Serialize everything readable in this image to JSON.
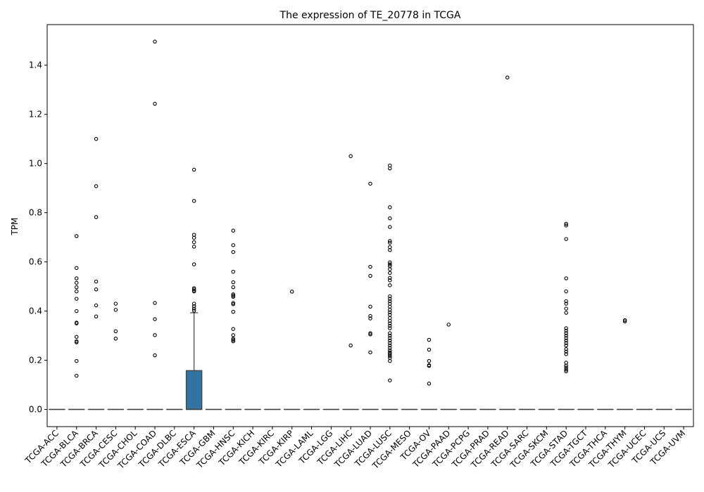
{
  "chart_data": {
    "type": "box",
    "title": "The expression of TE_20778 in TCGA",
    "xlabel": "",
    "ylabel": "TPM",
    "ylim": [
      -0.07,
      1.565
    ],
    "yticks": [
      0.0,
      0.2,
      0.4,
      0.6,
      0.8,
      1.0,
      1.2,
      1.4
    ],
    "ytick_labels": [
      "0.0",
      "0.2",
      "0.4",
      "0.6",
      "0.8",
      "1.0",
      "1.2",
      "1.4"
    ],
    "grid": false,
    "legend": "none",
    "box_color": "#3274a1",
    "categories": [
      "TCGA-ACC",
      "TCGA-BLCA",
      "TCGA-BRCA",
      "TCGA-CESC",
      "TCGA-CHOL",
      "TCGA-COAD",
      "TCGA-DLBC",
      "TCGA-ESCA",
      "TCGA-GBM",
      "TCGA-HNSC",
      "TCGA-KICH",
      "TCGA-KIRC",
      "TCGA-KIRP",
      "TCGA-LAML",
      "TCGA-LGG",
      "TCGA-LIHC",
      "TCGA-LUAD",
      "TCGA-LUSC",
      "TCGA-MESO",
      "TCGA-OV",
      "TCGA-PAAD",
      "TCGA-PCPG",
      "TCGA-PRAD",
      "TCGA-READ",
      "TCGA-SARC",
      "TCGA-SKCM",
      "TCGA-STAD",
      "TCGA-TGCT",
      "TCGA-THCA",
      "TCGA-THYM",
      "TCGA-UCEC",
      "TCGA-UCS",
      "TCGA-UVM"
    ],
    "boxes": [
      {
        "q1": 0,
        "median": 0,
        "q3": 0,
        "whisker_low": 0,
        "whisker_high": 0
      },
      {
        "q1": 0,
        "median": 0,
        "q3": 0,
        "whisker_low": 0,
        "whisker_high": 0
      },
      {
        "q1": 0,
        "median": 0,
        "q3": 0,
        "whisker_low": 0,
        "whisker_high": 0
      },
      {
        "q1": 0,
        "median": 0,
        "q3": 0,
        "whisker_low": 0,
        "whisker_high": 0
      },
      {
        "q1": 0,
        "median": 0,
        "q3": 0,
        "whisker_low": 0,
        "whisker_high": 0
      },
      {
        "q1": 0,
        "median": 0,
        "q3": 0,
        "whisker_low": 0,
        "whisker_high": 0
      },
      {
        "q1": 0,
        "median": 0,
        "q3": 0,
        "whisker_low": 0,
        "whisker_high": 0
      },
      {
        "q1": 0,
        "median": 0,
        "q3": 0.158,
        "whisker_low": 0,
        "whisker_high": 0.393
      },
      {
        "q1": 0,
        "median": 0,
        "q3": 0,
        "whisker_low": 0,
        "whisker_high": 0
      },
      {
        "q1": 0,
        "median": 0,
        "q3": 0,
        "whisker_low": 0,
        "whisker_high": 0
      },
      {
        "q1": 0,
        "median": 0,
        "q3": 0,
        "whisker_low": 0,
        "whisker_high": 0
      },
      {
        "q1": 0,
        "median": 0,
        "q3": 0,
        "whisker_low": 0,
        "whisker_high": 0
      },
      {
        "q1": 0,
        "median": 0,
        "q3": 0,
        "whisker_low": 0,
        "whisker_high": 0
      },
      {
        "q1": 0,
        "median": 0,
        "q3": 0,
        "whisker_low": 0,
        "whisker_high": 0
      },
      {
        "q1": 0,
        "median": 0,
        "q3": 0,
        "whisker_low": 0,
        "whisker_high": 0
      },
      {
        "q1": 0,
        "median": 0,
        "q3": 0,
        "whisker_low": 0,
        "whisker_high": 0
      },
      {
        "q1": 0,
        "median": 0,
        "q3": 0,
        "whisker_low": 0,
        "whisker_high": 0
      },
      {
        "q1": 0,
        "median": 0,
        "q3": 0,
        "whisker_low": 0,
        "whisker_high": 0
      },
      {
        "q1": 0,
        "median": 0,
        "q3": 0,
        "whisker_low": 0,
        "whisker_high": 0
      },
      {
        "q1": 0,
        "median": 0,
        "q3": 0,
        "whisker_low": 0,
        "whisker_high": 0
      },
      {
        "q1": 0,
        "median": 0,
        "q3": 0,
        "whisker_low": 0,
        "whisker_high": 0
      },
      {
        "q1": 0,
        "median": 0,
        "q3": 0,
        "whisker_low": 0,
        "whisker_high": 0
      },
      {
        "q1": 0,
        "median": 0,
        "q3": 0,
        "whisker_low": 0,
        "whisker_high": 0
      },
      {
        "q1": 0,
        "median": 0,
        "q3": 0,
        "whisker_low": 0,
        "whisker_high": 0
      },
      {
        "q1": 0,
        "median": 0,
        "q3": 0,
        "whisker_low": 0,
        "whisker_high": 0
      },
      {
        "q1": 0,
        "median": 0,
        "q3": 0,
        "whisker_low": 0,
        "whisker_high": 0
      },
      {
        "q1": 0,
        "median": 0,
        "q3": 0,
        "whisker_low": 0,
        "whisker_high": 0
      },
      {
        "q1": 0,
        "median": 0,
        "q3": 0,
        "whisker_low": 0,
        "whisker_high": 0
      },
      {
        "q1": 0,
        "median": 0,
        "q3": 0,
        "whisker_low": 0,
        "whisker_high": 0
      },
      {
        "q1": 0,
        "median": 0,
        "q3": 0,
        "whisker_low": 0,
        "whisker_high": 0
      },
      {
        "q1": 0,
        "median": 0,
        "q3": 0,
        "whisker_low": 0,
        "whisker_high": 0
      },
      {
        "q1": 0,
        "median": 0,
        "q3": 0,
        "whisker_low": 0,
        "whisker_high": 0
      },
      {
        "q1": 0,
        "median": 0,
        "q3": 0,
        "whisker_low": 0,
        "whisker_high": 0
      }
    ],
    "outliers": [
      [],
      [
        0.705,
        0.575,
        0.533,
        0.515,
        0.497,
        0.48,
        0.45,
        0.4,
        0.353,
        0.35,
        0.295,
        0.277,
        0.273,
        0.197,
        0.137
      ],
      [
        1.1,
        0.908,
        0.782,
        0.52,
        0.488,
        0.423,
        0.378
      ],
      [
        0.43,
        0.405,
        0.318,
        0.288
      ],
      [],
      [
        1.496,
        1.243,
        0.433,
        0.367,
        0.302,
        0.22
      ],
      [],
      [
        0.975,
        0.848,
        0.71,
        0.698,
        0.68,
        0.662,
        0.59,
        0.493,
        0.488,
        0.482,
        0.48,
        0.43,
        0.42,
        0.41,
        0.402
      ],
      [],
      [
        0.727,
        0.668,
        0.64,
        0.56,
        0.517,
        0.497,
        0.468,
        0.463,
        0.458,
        0.433,
        0.428,
        0.397,
        0.327,
        0.302,
        0.287,
        0.282,
        0.277
      ],
      [],
      [],
      [
        0.479
      ],
      [],
      [],
      [
        1.03,
        0.26
      ],
      [
        0.918,
        0.58,
        0.543,
        0.418,
        0.38,
        0.37,
        0.31,
        0.305,
        0.232
      ],
      [
        0.992,
        0.98,
        0.822,
        0.777,
        0.742,
        0.685,
        0.678,
        0.66,
        0.648,
        0.598,
        0.59,
        0.583,
        0.57,
        0.555,
        0.535,
        0.525,
        0.505,
        0.46,
        0.45,
        0.44,
        0.43,
        0.418,
        0.405,
        0.395,
        0.385,
        0.372,
        0.36,
        0.35,
        0.34,
        0.33,
        0.31,
        0.3,
        0.29,
        0.28,
        0.27,
        0.26,
        0.25,
        0.24,
        0.232,
        0.225,
        0.218,
        0.21,
        0.197,
        0.118
      ],
      [],
      [
        0.283,
        0.243,
        0.197,
        0.18,
        0.177,
        0.105
      ],
      [
        0.345
      ],
      [],
      [],
      [
        1.35
      ],
      [],
      [],
      [
        0.755,
        0.748,
        0.693,
        0.533,
        0.48,
        0.44,
        0.43,
        0.41,
        0.393,
        0.33,
        0.32,
        0.31,
        0.3,
        0.29,
        0.28,
        0.27,
        0.26,
        0.245,
        0.235,
        0.225,
        0.19,
        0.178,
        0.17,
        0.162,
        0.155
      ],
      [],
      [],
      [
        0.363,
        0.358
      ],
      [],
      [],
      []
    ]
  }
}
